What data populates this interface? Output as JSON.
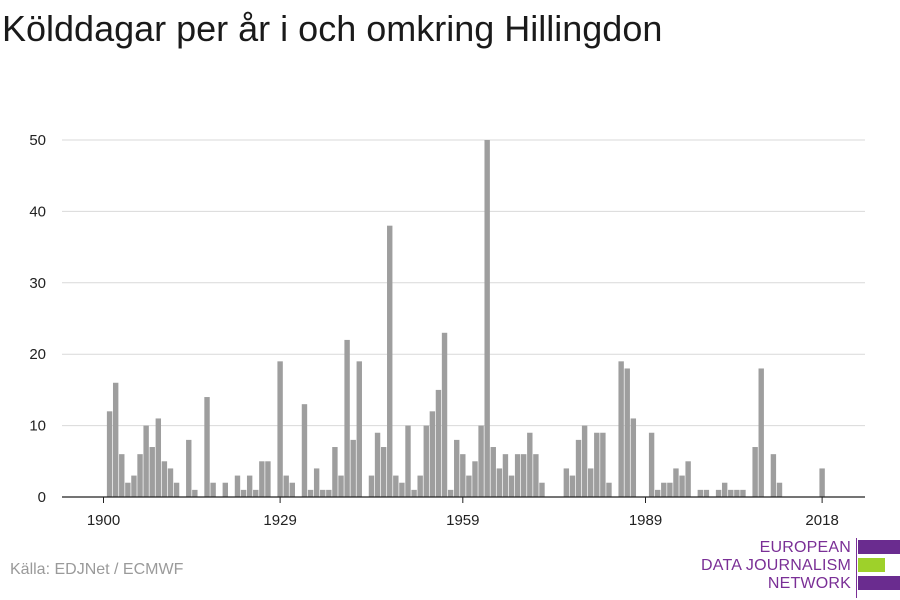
{
  "title": "Kölddagar per år i och omkring Hillingdon",
  "source": "Källa: EDJNet / ECMWF",
  "logo": {
    "lines": [
      "EUROPEAN",
      "DATA JOURNALISM",
      "NETWORK"
    ],
    "colors": [
      "#6a2c8f",
      "#9ed12a",
      "#6a2c8f"
    ]
  },
  "chart_data": {
    "type": "bar",
    "bar_color": "#9e9e9e",
    "ylim": [
      0,
      50
    ],
    "yticks": [
      0,
      10,
      20,
      30,
      40,
      50
    ],
    "xticks": [
      1900,
      1929,
      1959,
      1989,
      2018
    ],
    "grid": true,
    "x": [
      1900,
      1901,
      1902,
      1903,
      1904,
      1905,
      1906,
      1907,
      1908,
      1909,
      1910,
      1911,
      1912,
      1913,
      1914,
      1915,
      1916,
      1917,
      1918,
      1919,
      1920,
      1921,
      1922,
      1923,
      1924,
      1925,
      1926,
      1927,
      1928,
      1929,
      1930,
      1931,
      1932,
      1933,
      1934,
      1935,
      1936,
      1937,
      1938,
      1939,
      1940,
      1941,
      1942,
      1943,
      1944,
      1945,
      1946,
      1947,
      1948,
      1949,
      1950,
      1951,
      1952,
      1953,
      1954,
      1955,
      1956,
      1957,
      1958,
      1959,
      1960,
      1961,
      1962,
      1963,
      1964,
      1965,
      1966,
      1967,
      1968,
      1969,
      1970,
      1971,
      1972,
      1973,
      1974,
      1975,
      1976,
      1977,
      1978,
      1979,
      1980,
      1981,
      1982,
      1983,
      1984,
      1985,
      1986,
      1987,
      1988,
      1989,
      1990,
      1991,
      1992,
      1993,
      1994,
      1995,
      1996,
      1997,
      1998,
      1999,
      2000,
      2001,
      2002,
      2003,
      2004,
      2005,
      2006,
      2007,
      2008,
      2009,
      2010,
      2011,
      2012,
      2013,
      2014,
      2015,
      2016,
      2017,
      2018
    ],
    "values": [
      0,
      12,
      16,
      6,
      2,
      3,
      6,
      10,
      7,
      11,
      5,
      4,
      2,
      0,
      8,
      1,
      0,
      14,
      2,
      0,
      2,
      0,
      3,
      1,
      3,
      1,
      5,
      5,
      0,
      19,
      3,
      2,
      0,
      13,
      1,
      4,
      1,
      1,
      7,
      3,
      22,
      8,
      19,
      0,
      3,
      9,
      7,
      38,
      3,
      2,
      10,
      1,
      3,
      10,
      12,
      15,
      23,
      1,
      8,
      6,
      3,
      5,
      10,
      50,
      7,
      4,
      6,
      3,
      6,
      6,
      9,
      6,
      2,
      0,
      0,
      0,
      4,
      3,
      8,
      10,
      4,
      9,
      9,
      2,
      0,
      19,
      18,
      11,
      0,
      0,
      9,
      1,
      2,
      2,
      4,
      3,
      5,
      0,
      1,
      1,
      0,
      1,
      2,
      1,
      1,
      1,
      0,
      7,
      18,
      0,
      6,
      2,
      0,
      0,
      0,
      0,
      0,
      0,
      4
    ]
  }
}
